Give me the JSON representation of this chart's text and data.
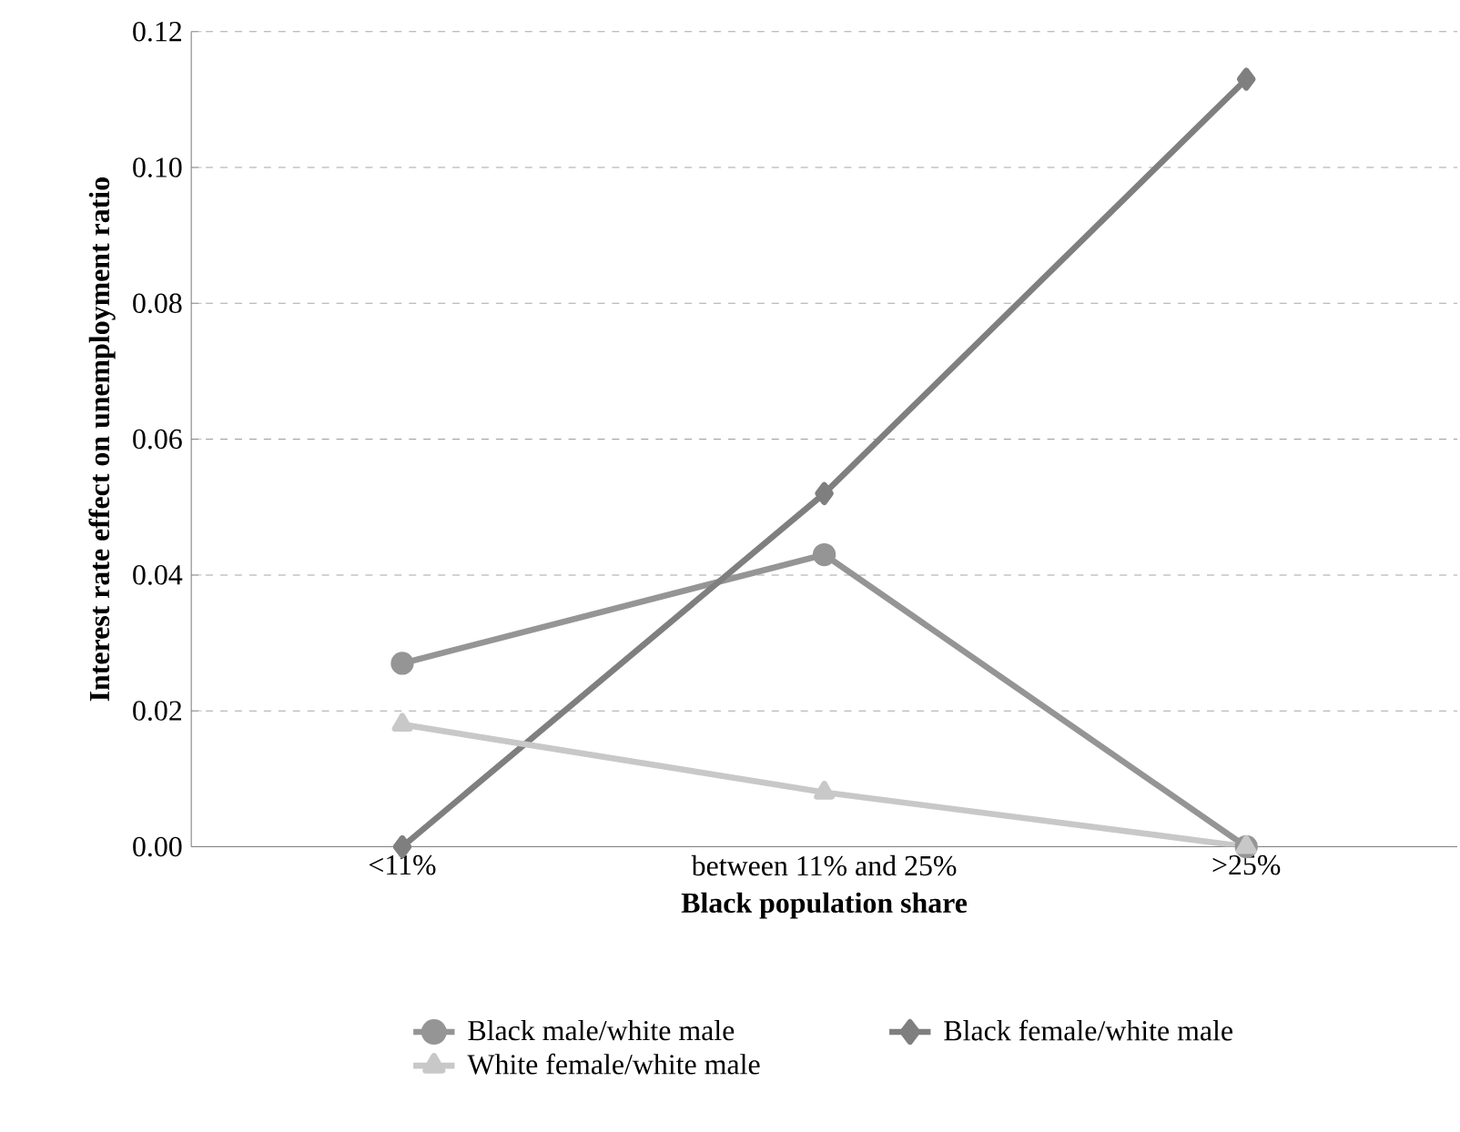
{
  "chart_data": {
    "type": "line",
    "xlabel": "Black population share",
    "ylabel": "Interest rate effect on unemployment ratio",
    "categories": [
      "<11%",
      "between 11% and 25%",
      ">25%"
    ],
    "series": [
      {
        "name": "Black male/white male",
        "color": "#959595",
        "marker": "circle",
        "values": [
          0.027,
          0.043,
          0.0
        ]
      },
      {
        "name": "Black female/white male",
        "color": "#7f7f7f",
        "marker": "diamond",
        "values": [
          0.0,
          0.052,
          0.113
        ]
      },
      {
        "name": "White female/white male",
        "color": "#c8c8c8",
        "marker": "triangle",
        "values": [
          0.018,
          0.008,
          0.0
        ]
      }
    ],
    "ylim": [
      0,
      0.12
    ],
    "yticks": [
      {
        "value": 0,
        "label": "0.00"
      },
      {
        "value": 0.02,
        "label": "0.02"
      },
      {
        "value": 0.04,
        "label": "0.04"
      },
      {
        "value": 0.06,
        "label": "0.06"
      },
      {
        "value": 0.08,
        "label": "0.08"
      },
      {
        "value": 0.1,
        "label": "0.10"
      },
      {
        "value": 0.12,
        "label": "0.12"
      }
    ],
    "grid": "y",
    "legend": "bottom"
  }
}
